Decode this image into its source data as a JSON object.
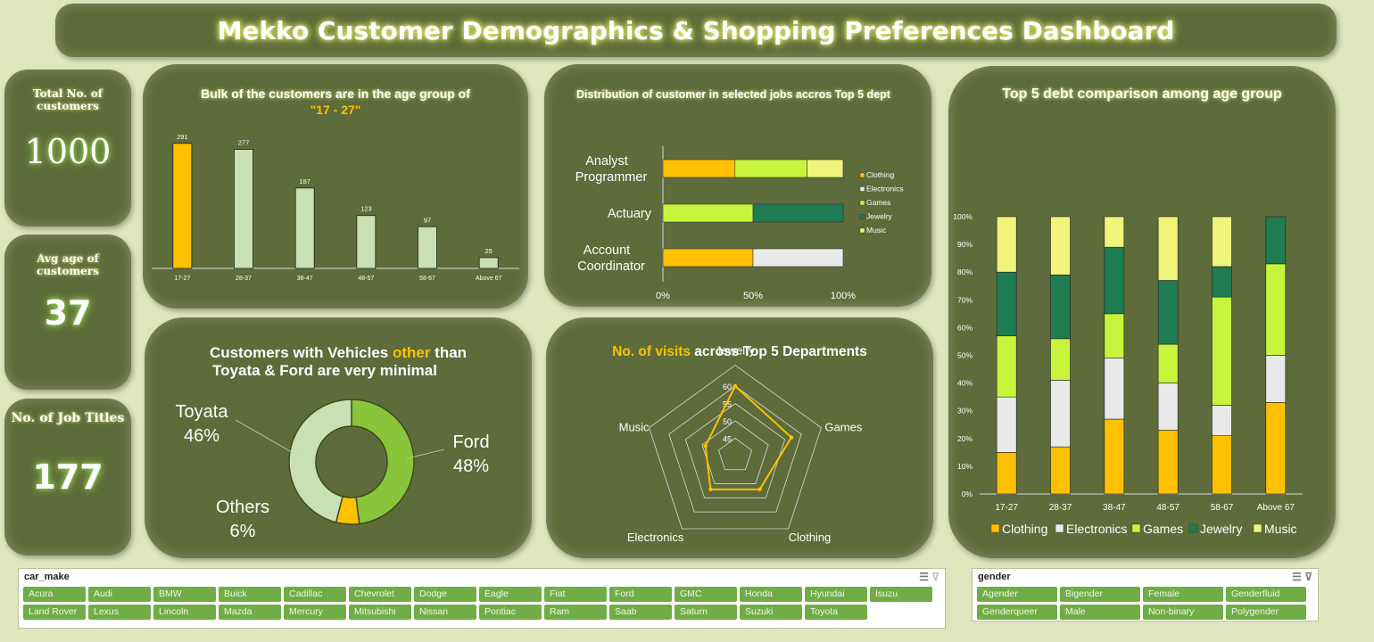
{
  "header": {
    "title": "Mekko Customer Demographics & Shopping Preferences Dashboard"
  },
  "kpis": [
    {
      "label": "Total No. of customers",
      "value": "1000"
    },
    {
      "label": "Avg age of customers",
      "value": "37"
    },
    {
      "label": "No. of Job Titles",
      "value": "177"
    }
  ],
  "colors": {
    "clothing": "#ffc000",
    "electronics": "#e9e9e9",
    "games": "#c8f53c",
    "jewelry": "#1e7b52",
    "music": "#eef57a",
    "bar_highlight": "#ffc000",
    "bar_default": "#c8e0b4",
    "ford": "#8ac43a",
    "toyota": "#c8e0b4",
    "others": "#ffc000"
  },
  "chart_data": [
    {
      "type": "bar",
      "title_line1": "Bulk of the customers are in the age group of",
      "title_line2": "\"17 - 27\"",
      "categories": [
        "17-27",
        "28-37",
        "38-47",
        "48-57",
        "58-67",
        "Above 67"
      ],
      "values": [
        291,
        277,
        187,
        123,
        97,
        25
      ],
      "value_labels": [
        "291",
        "277",
        "187",
        "123",
        "97",
        "25"
      ],
      "ylim": [
        0,
        330
      ]
    },
    {
      "type": "bar",
      "orientation": "horizontal-stacked-100",
      "title": "Distribution of customer in selected jobs accros Top 5 dept",
      "categories": [
        {
          "line1": "Analyst",
          "line2": "Programmer"
        },
        {
          "line1": "Actuary",
          "line2": ""
        },
        {
          "line1": "Account",
          "line2": "Coordinator"
        }
      ],
      "series": [
        {
          "name": "Clothing",
          "values": [
            40,
            0,
            50
          ]
        },
        {
          "name": "Electronics",
          "values": [
            0,
            0,
            50
          ]
        },
        {
          "name": "Games",
          "values": [
            40,
            50,
            0
          ]
        },
        {
          "name": "Jewelry",
          "values": [
            0,
            50,
            0
          ]
        },
        {
          "name": "Music",
          "values": [
            20,
            0,
            0
          ]
        }
      ],
      "x_ticks": [
        "0%",
        "50%",
        "100%"
      ]
    },
    {
      "type": "bar",
      "orientation": "vertical-stacked-100",
      "title": "Top 5 debt comparison among age group",
      "categories": [
        "17-27",
        "28-37",
        "38-47",
        "48-57",
        "58-67",
        "Above 67"
      ],
      "series": [
        {
          "name": "Clothing",
          "values": [
            15,
            17,
            27,
            23,
            21,
            33
          ]
        },
        {
          "name": "Electronics",
          "values": [
            20,
            24,
            22,
            17,
            11,
            17
          ]
        },
        {
          "name": "Games",
          "values": [
            22,
            15,
            16,
            14,
            39,
            33
          ]
        },
        {
          "name": "Jewelry",
          "values": [
            23,
            23,
            24,
            23,
            11,
            17
          ]
        },
        {
          "name": "Music",
          "values": [
            20,
            21,
            11,
            23,
            18,
            0
          ]
        }
      ],
      "y_ticks": [
        "0%",
        "10%",
        "20%",
        "30%",
        "40%",
        "50%",
        "60%",
        "70%",
        "80%",
        "90%",
        "100%"
      ]
    },
    {
      "type": "pie",
      "variant": "doughnut",
      "title_part1": "Customers with Vehicles ",
      "title_highlight": "other",
      "title_part2": " than",
      "title_line2": "Toyata & Ford are very minimal",
      "slices": [
        {
          "name": "Ford",
          "value": 48,
          "label": "48%"
        },
        {
          "name": "Others",
          "value": 6,
          "label": "6%"
        },
        {
          "name": "Toyata",
          "value": 46,
          "label": "46%"
        }
      ]
    },
    {
      "type": "radar",
      "title_highlight": "No. of visits",
      "title_rest": " across Top 5 Departments",
      "axes": [
        "Jewelry",
        "Games",
        "Clothing",
        "Electronics",
        "Music"
      ],
      "values": [
        60,
        57,
        52,
        52,
        49
      ],
      "rlim": [
        40,
        60
      ],
      "r_ticks": [
        45,
        50,
        55,
        60
      ],
      "r_tick_labels": [
        "45",
        "50",
        "55",
        "60"
      ]
    }
  ],
  "slicers": {
    "car_make": {
      "title": "car_make",
      "items": [
        "Acura",
        "Audi",
        "BMW",
        "Buick",
        "Cadillac",
        "Chevrolet",
        "Dodge",
        "Eagle",
        "Fiat",
        "Ford",
        "GMC",
        "Honda",
        "Hyundai",
        "Isuzu",
        "Land Rover",
        "Lexus",
        "Lincoln",
        "Mazda",
        "Mercury",
        "Mitsubishi",
        "Nissan",
        "Pontiac",
        "Ram",
        "Saab",
        "Saturn",
        "Suzuki",
        "Toyota"
      ]
    },
    "gender": {
      "title": "gender",
      "items": [
        "Agender",
        "Bigender",
        "Female",
        "Genderfluid",
        "Genderqueer",
        "Male",
        "Non-binary",
        "Polygender"
      ]
    }
  }
}
